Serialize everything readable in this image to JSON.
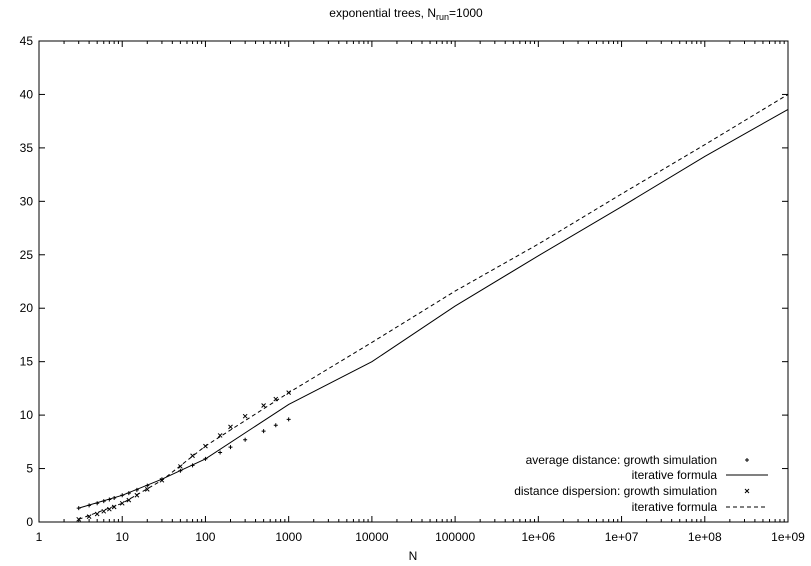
{
  "chart_data": {
    "type": "scatter",
    "title": "exponential trees, N",
    "title_sub": "run",
    "title_tail": "=1000",
    "xlabel": "N",
    "ylabel": "",
    "x_scale": "log",
    "xlim": [
      1,
      1000000000
    ],
    "ylim": [
      0,
      45
    ],
    "x_ticks": [
      1,
      10,
      100,
      1000,
      10000,
      100000,
      1000000,
      10000000,
      100000000,
      1000000000
    ],
    "x_tick_labels": [
      "1",
      "10",
      "100",
      "1000",
      "10000",
      "100000",
      "1e+06",
      "1e+07",
      "1e+08",
      "1e+09"
    ],
    "y_ticks": [
      0,
      5,
      10,
      15,
      20,
      25,
      30,
      35,
      40,
      45
    ],
    "y_tick_labels": [
      "0",
      "5",
      "10",
      "15",
      "20",
      "25",
      "30",
      "35",
      "40",
      "45"
    ],
    "grid": false,
    "legend_position": "bottom-right",
    "series": [
      {
        "name": "average distance: growth simulation",
        "kind": "points",
        "marker": "plus",
        "x": [
          3,
          4,
          5,
          6,
          7,
          8,
          10,
          12,
          15,
          20,
          30,
          50,
          70,
          100,
          150,
          200,
          300,
          500,
          700,
          1000
        ],
        "y": [
          1.3,
          1.55,
          1.75,
          1.95,
          2.1,
          2.25,
          2.5,
          2.7,
          3.0,
          3.4,
          4.0,
          4.8,
          5.3,
          5.9,
          6.5,
          7.0,
          7.7,
          8.5,
          9.05,
          9.6
        ]
      },
      {
        "name": "iterative formula",
        "kind": "line",
        "dash": "solid",
        "x": [
          3,
          10,
          30,
          100,
          1000,
          10000,
          100000,
          1000000,
          10000000,
          100000000,
          1000000000
        ],
        "y": [
          1.3,
          2.5,
          4.0,
          5.9,
          11.0,
          15.0,
          20.2,
          24.9,
          29.5,
          34.2,
          38.6
        ]
      },
      {
        "name": "distance dispersion: growth simulation",
        "kind": "points",
        "marker": "cross",
        "x": [
          3,
          4,
          5,
          6,
          7,
          8,
          10,
          12,
          15,
          20,
          30,
          50,
          70,
          100,
          150,
          200,
          300,
          500,
          700,
          1000
        ],
        "y": [
          0.25,
          0.5,
          0.75,
          1.0,
          1.2,
          1.4,
          1.75,
          2.05,
          2.5,
          3.05,
          3.9,
          5.2,
          6.2,
          7.1,
          8.1,
          8.9,
          9.9,
          10.9,
          11.5,
          12.1
        ]
      },
      {
        "name": "iterative formula",
        "kind": "line",
        "dash": "dashed",
        "x": [
          3,
          10,
          30,
          100,
          1000,
          10000,
          100000,
          1000000,
          10000000,
          100000000,
          1000000000
        ],
        "y": [
          0.25,
          1.75,
          3.9,
          7.1,
          12.1,
          16.8,
          21.6,
          26.0,
          30.7,
          35.3,
          40.0
        ]
      }
    ]
  }
}
